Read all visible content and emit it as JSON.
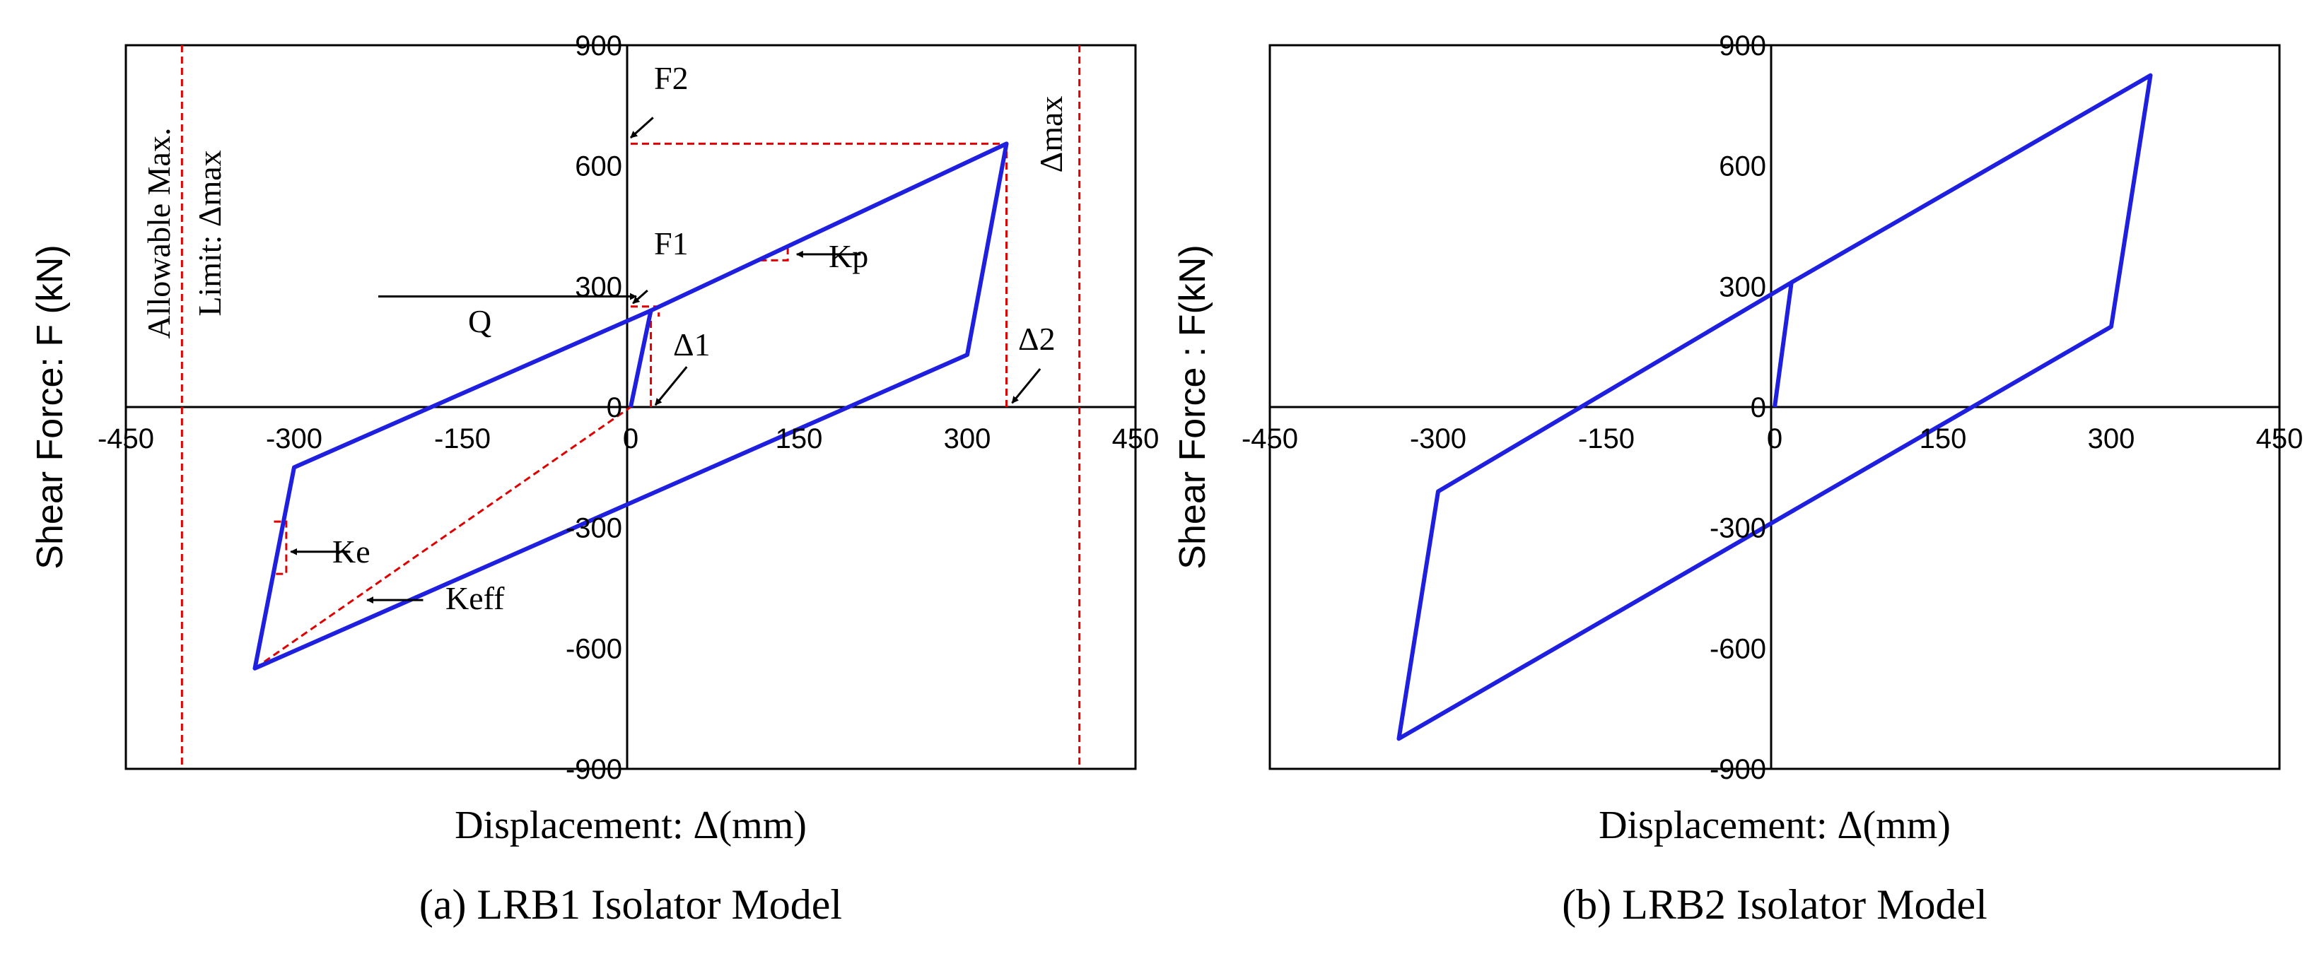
{
  "chart_data": [
    {
      "type": "line",
      "caption": "(a) LRB1 Isolator Model",
      "xlabel": "Displacement: Δ(mm)",
      "ylabel": "Shear Force: F (kN)",
      "xlim": [
        -450,
        450
      ],
      "ylim": [
        -900,
        900
      ],
      "xticks": [
        -450,
        -300,
        -150,
        0,
        150,
        300,
        450
      ],
      "yticks": [
        -900,
        -600,
        -300,
        0,
        300,
        600,
        900
      ],
      "series": [
        {
          "color": "#1f1fe0",
          "points": [
            [
              0,
              0
            ],
            [
              18,
              240
            ],
            [
              335,
              655
            ],
            [
              300,
              130
            ],
            [
              -335,
              -650
            ],
            [
              -300,
              -150
            ],
            [
              18,
              240
            ]
          ]
        }
      ],
      "guides": {
        "color": "#e00000",
        "keff_line": [
          [
            -335,
            -650
          ],
          [
            0,
            0
          ]
        ],
        "limit_lines_x": [
          -400,
          400
        ],
        "f2_line": {
          "y": 655,
          "x_from": 0,
          "x_to": 335
        },
        "delta2_line": {
          "x": 335,
          "y_from": 0,
          "y_to": 655
        },
        "delta1_line": {
          "x": 18,
          "y_from": 0,
          "y_to": 240
        }
      },
      "annotations": {
        "allowable_line1": "Allowable Max.",
        "allowable_line2": "Limit: Δmax",
        "dmax": "Δmax",
        "f2": "F2",
        "f1": "F1",
        "q": "Q",
        "d1": "Δ1",
        "d2": "Δ2",
        "kp": "Kp",
        "ke": "Ke",
        "keff": "Keff"
      }
    },
    {
      "type": "line",
      "caption": "(b) LRB2 Isolator Model",
      "xlabel": "Displacement: Δ(mm)",
      "ylabel": "Shear Force : F(kN)",
      "xlim": [
        -450,
        450
      ],
      "ylim": [
        -900,
        900
      ],
      "xticks": [
        -450,
        -300,
        -150,
        0,
        150,
        300,
        450
      ],
      "yticks": [
        -900,
        -600,
        -300,
        0,
        300,
        600,
        900
      ],
      "series": [
        {
          "color": "#1f1fe0",
          "points": [
            [
              0,
              0
            ],
            [
              15,
              310
            ],
            [
              335,
              825
            ],
            [
              300,
              200
            ],
            [
              -335,
              -825
            ],
            [
              -300,
              -210
            ],
            [
              15,
              310
            ]
          ]
        }
      ]
    }
  ]
}
